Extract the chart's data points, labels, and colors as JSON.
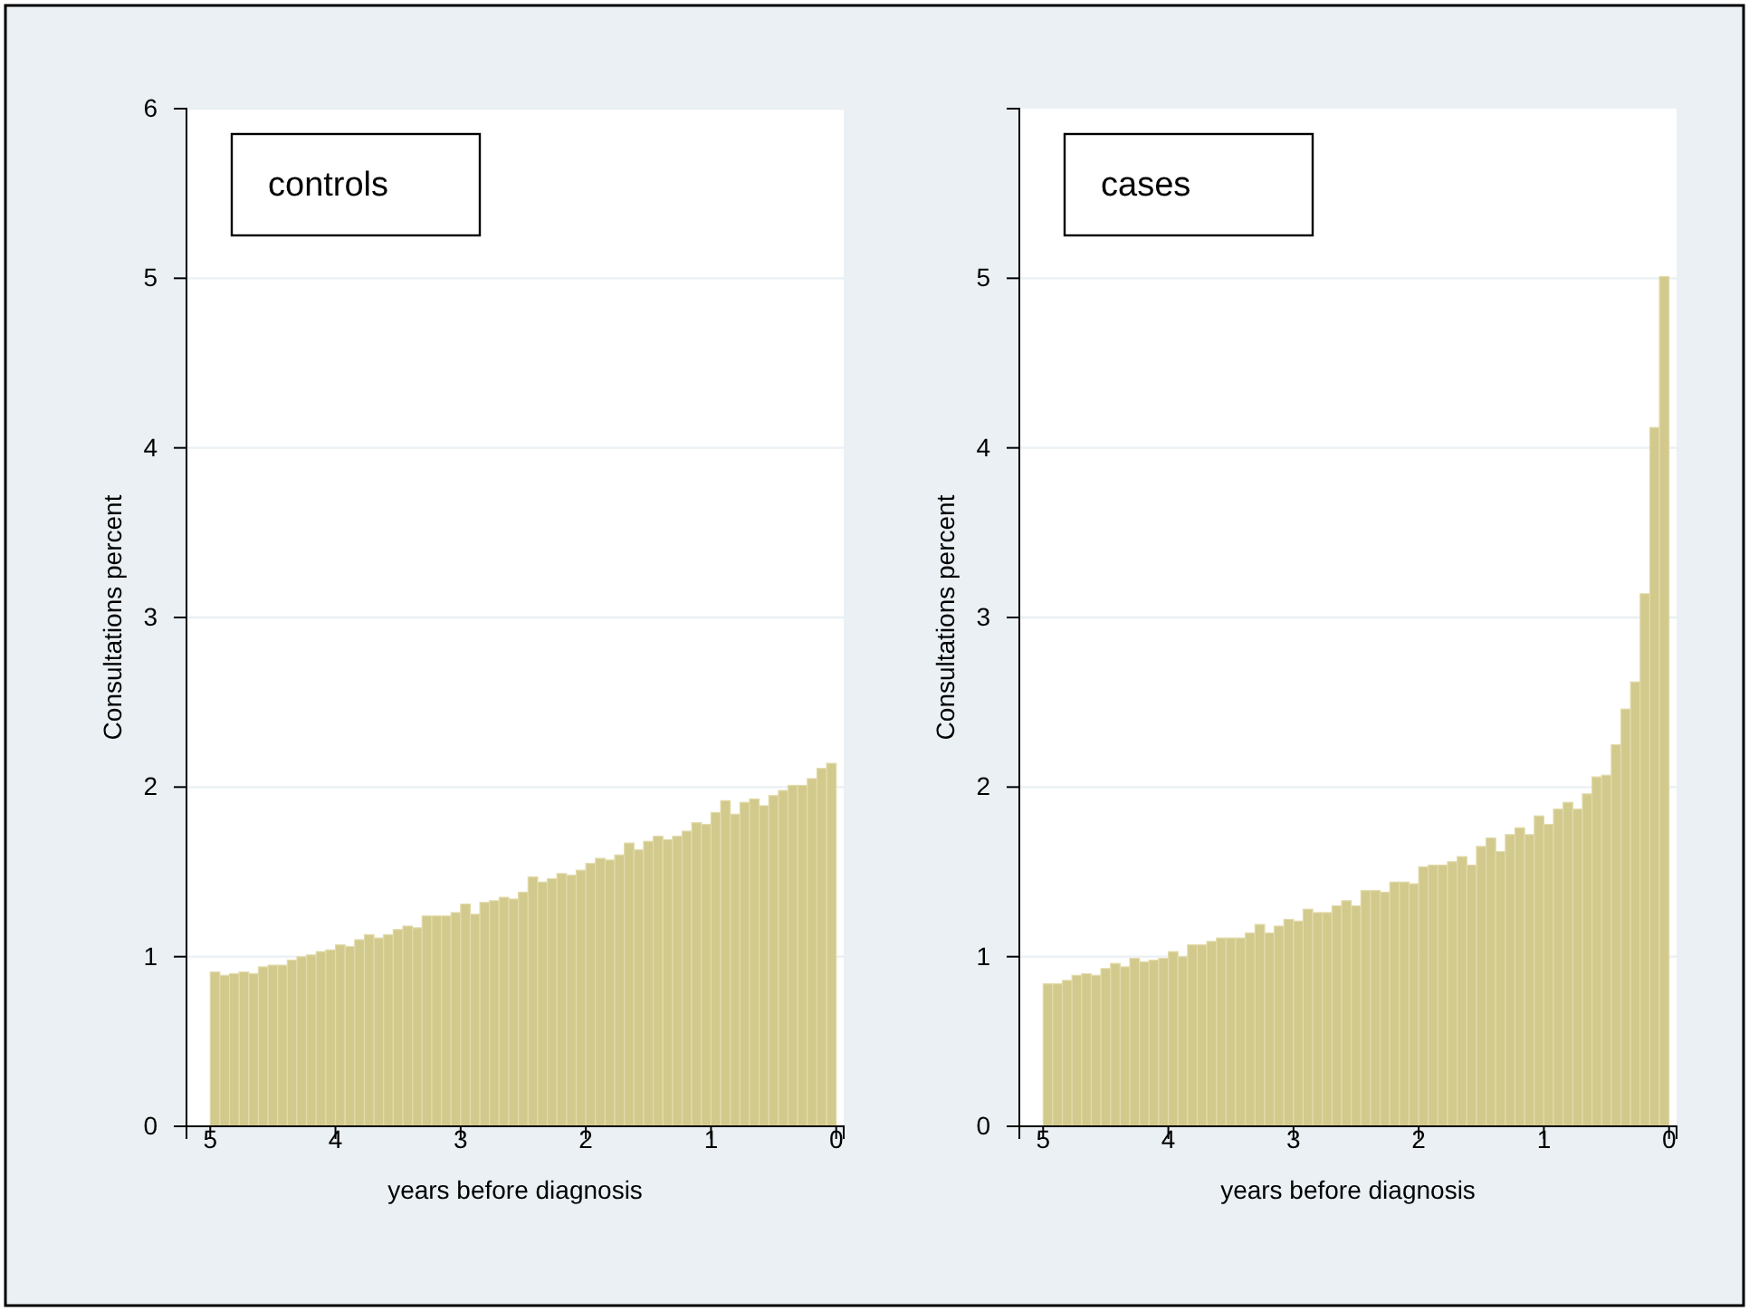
{
  "chart_data": [
    {
      "type": "histogram",
      "title": "controls",
      "xlabel": "years before diagnosis",
      "ylabel": "Consultations percent",
      "color": "#d2c98c",
      "xlim": [
        5.19,
        -0.06
      ],
      "xticks": [
        5,
        4,
        3,
        2,
        1,
        0
      ],
      "ylim": [
        0,
        6
      ],
      "yticks": [
        0,
        1,
        2,
        3,
        4,
        5,
        6
      ],
      "grid": "y",
      "bins": [
        5,
        4.9231,
        4.8462,
        4.7692,
        4.6923,
        4.6154,
        4.5385,
        4.4615,
        4.3846,
        4.3077,
        4.2308,
        4.1538,
        4.0769,
        4,
        3.9231,
        3.8462,
        3.7692,
        3.6923,
        3.6154,
        3.5385,
        3.4615,
        3.3846,
        3.3077,
        3.2308,
        3.1538,
        3.0769,
        3,
        2.9231,
        2.8462,
        2.7692,
        2.6923,
        2.6154,
        2.5385,
        2.4615,
        2.3846,
        2.3077,
        2.2308,
        2.1538,
        2.0769,
        2,
        1.9231,
        1.8462,
        1.7692,
        1.6923,
        1.6154,
        1.5385,
        1.4615,
        1.3846,
        1.3077,
        1.2308,
        1.1538,
        1.0769,
        1,
        0.9231,
        0.8462,
        0.7692,
        0.6923,
        0.6154,
        0.5385,
        0.4615,
        0.3846,
        0.3077,
        0.2308,
        0.1538,
        0.0769,
        0
      ],
      "values": [
        0.91,
        0.89,
        0.9,
        0.91,
        0.9,
        0.94,
        0.95,
        0.95,
        0.98,
        1.0,
        1.01,
        1.03,
        1.04,
        1.07,
        1.06,
        1.1,
        1.13,
        1.11,
        1.13,
        1.16,
        1.18,
        1.17,
        1.24,
        1.24,
        1.24,
        1.26,
        1.31,
        1.25,
        1.32,
        1.33,
        1.35,
        1.34,
        1.38,
        1.47,
        1.44,
        1.46,
        1.49,
        1.48,
        1.51,
        1.55,
        1.58,
        1.57,
        1.6,
        1.67,
        1.63,
        1.68,
        1.71,
        1.69,
        1.71,
        1.74,
        1.79,
        1.78,
        1.85,
        1.92,
        1.84,
        1.91,
        1.93,
        1.89,
        1.95,
        1.98,
        2.01,
        2.01,
        2.05,
        2.11,
        2.14
      ]
    },
    {
      "type": "histogram",
      "title": "cases",
      "xlabel": "years before diagnosis",
      "ylabel": "Consultations percent",
      "color": "#d2c98c",
      "xlim": [
        5.19,
        -0.06
      ],
      "xticks": [
        5,
        4,
        3,
        2,
        1,
        0
      ],
      "ylim": [
        0,
        6
      ],
      "yticks": [
        0,
        1,
        2,
        3,
        4,
        5
      ],
      "grid": "y",
      "bins": [
        5,
        4.9231,
        4.8462,
        4.7692,
        4.6923,
        4.6154,
        4.5385,
        4.4615,
        4.3846,
        4.3077,
        4.2308,
        4.1538,
        4.0769,
        4,
        3.9231,
        3.8462,
        3.7692,
        3.6923,
        3.6154,
        3.5385,
        3.4615,
        3.3846,
        3.3077,
        3.2308,
        3.1538,
        3.0769,
        3,
        2.9231,
        2.8462,
        2.7692,
        2.6923,
        2.6154,
        2.5385,
        2.4615,
        2.3846,
        2.3077,
        2.2308,
        2.1538,
        2.0769,
        2,
        1.9231,
        1.8462,
        1.7692,
        1.6923,
        1.6154,
        1.5385,
        1.4615,
        1.3846,
        1.3077,
        1.2308,
        1.1538,
        1.0769,
        1,
        0.9231,
        0.8462,
        0.7692,
        0.6923,
        0.6154,
        0.5385,
        0.4615,
        0.3846,
        0.3077,
        0.2308,
        0.1538,
        0.0769,
        0
      ],
      "values": [
        0.84,
        0.84,
        0.86,
        0.89,
        0.9,
        0.89,
        0.93,
        0.96,
        0.94,
        0.99,
        0.97,
        0.98,
        0.99,
        1.03,
        1.0,
        1.07,
        1.07,
        1.09,
        1.11,
        1.11,
        1.11,
        1.14,
        1.19,
        1.14,
        1.18,
        1.22,
        1.21,
        1.28,
        1.26,
        1.26,
        1.3,
        1.33,
        1.3,
        1.39,
        1.39,
        1.38,
        1.44,
        1.44,
        1.43,
        1.53,
        1.54,
        1.54,
        1.56,
        1.59,
        1.54,
        1.65,
        1.7,
        1.62,
        1.72,
        1.76,
        1.72,
        1.83,
        1.78,
        1.87,
        1.91,
        1.87,
        1.96,
        2.06,
        2.07,
        2.25,
        2.46,
        2.62,
        3.14,
        4.12,
        5.01
      ]
    }
  ]
}
